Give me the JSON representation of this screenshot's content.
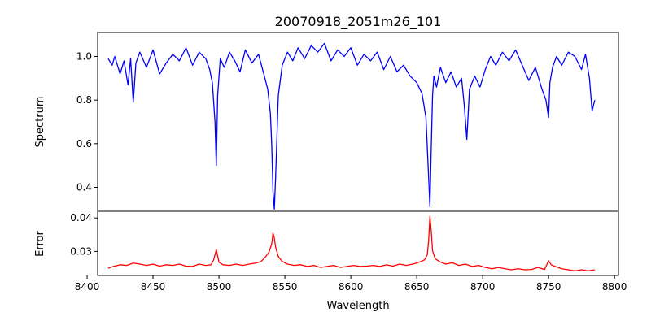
{
  "chart_data": {
    "type": "line",
    "title": "20070918_2051m26_101",
    "xlabel": "Wavelength",
    "x_range": [
      8400,
      8800
    ],
    "x_ticks": [
      8400,
      8450,
      8500,
      8550,
      8600,
      8650,
      8700,
      8750,
      8800
    ],
    "grid": false,
    "panels": [
      {
        "ylabel": "Spectrum",
        "ylim": [
          0.29,
          1.11
        ],
        "y_ticks": [
          0.4,
          0.6,
          0.8,
          1.0
        ],
        "color": "#0000ff",
        "x": [
          8416,
          8419,
          8421,
          8425,
          8428,
          8431,
          8433,
          8435,
          8437,
          8440,
          8445,
          8450,
          8455,
          8460,
          8465,
          8470,
          8475,
          8480,
          8485,
          8490,
          8493,
          8495,
          8497,
          8498,
          8499,
          8501,
          8504,
          8508,
          8512,
          8516,
          8520,
          8525,
          8530,
          8534,
          8537,
          8539,
          8540,
          8541,
          8542,
          8543,
          8545,
          8548,
          8552,
          8556,
          8560,
          8565,
          8570,
          8575,
          8580,
          8585,
          8590,
          8595,
          8600,
          8605,
          8610,
          8615,
          8620,
          8625,
          8630,
          8635,
          8640,
          8645,
          8650,
          8654,
          8657,
          8659,
          8660,
          8661,
          8662,
          8663,
          8665,
          8668,
          8672,
          8676,
          8680,
          8684,
          8686,
          8688,
          8690,
          8694,
          8698,
          8702,
          8706,
          8710,
          8715,
          8720,
          8725,
          8730,
          8735,
          8740,
          8745,
          8748,
          8750,
          8751,
          8753,
          8756,
          8760,
          8765,
          8770,
          8775,
          8778,
          8781,
          8783,
          8785
        ],
        "y": [
          0.99,
          0.96,
          1.0,
          0.92,
          0.98,
          0.87,
          0.99,
          0.79,
          0.97,
          1.02,
          0.95,
          1.03,
          0.92,
          0.97,
          1.01,
          0.98,
          1.04,
          0.96,
          1.02,
          0.99,
          0.94,
          0.88,
          0.7,
          0.5,
          0.82,
          0.99,
          0.95,
          1.02,
          0.98,
          0.93,
          1.03,
          0.97,
          1.01,
          0.92,
          0.85,
          0.74,
          0.6,
          0.38,
          0.3,
          0.45,
          0.82,
          0.96,
          1.02,
          0.98,
          1.04,
          0.99,
          1.05,
          1.02,
          1.06,
          0.98,
          1.03,
          1.0,
          1.04,
          0.96,
          1.01,
          0.98,
          1.02,
          0.94,
          1.0,
          0.93,
          0.96,
          0.91,
          0.88,
          0.83,
          0.72,
          0.45,
          0.31,
          0.58,
          0.82,
          0.91,
          0.86,
          0.95,
          0.88,
          0.93,
          0.86,
          0.9,
          0.78,
          0.62,
          0.85,
          0.91,
          0.86,
          0.94,
          1.0,
          0.96,
          1.02,
          0.98,
          1.03,
          0.96,
          0.89,
          0.95,
          0.85,
          0.8,
          0.72,
          0.88,
          0.95,
          1.0,
          0.96,
          1.02,
          1.0,
          0.94,
          1.01,
          0.9,
          0.75,
          0.8
        ]
      },
      {
        "ylabel": "Error",
        "ylim": [
          0.0228,
          0.042
        ],
        "y_ticks": [
          0.03,
          0.04
        ],
        "color": "#ff0000",
        "x": [
          8416,
          8420,
          8425,
          8430,
          8435,
          8440,
          8445,
          8450,
          8455,
          8460,
          8465,
          8470,
          8475,
          8480,
          8485,
          8490,
          8494,
          8496,
          8498,
          8500,
          8503,
          8508,
          8513,
          8518,
          8523,
          8528,
          8532,
          8535,
          8538,
          8540,
          8541,
          8542,
          8543,
          8545,
          8548,
          8552,
          8557,
          8562,
          8567,
          8572,
          8577,
          8582,
          8587,
          8592,
          8597,
          8602,
          8607,
          8612,
          8617,
          8622,
          8627,
          8632,
          8637,
          8642,
          8647,
          8652,
          8656,
          8658,
          8659,
          8660,
          8661,
          8662,
          8664,
          8668,
          8672,
          8677,
          8682,
          8687,
          8692,
          8697,
          8702,
          8707,
          8712,
          8717,
          8722,
          8727,
          8732,
          8737,
          8742,
          8747,
          8750,
          8752,
          8755,
          8760,
          8765,
          8770,
          8775,
          8780,
          8785
        ],
        "y": [
          0.025,
          0.0255,
          0.026,
          0.0258,
          0.0265,
          0.0262,
          0.0258,
          0.0262,
          0.0256,
          0.026,
          0.0258,
          0.0262,
          0.0256,
          0.0255,
          0.0262,
          0.0258,
          0.026,
          0.0275,
          0.0305,
          0.0268,
          0.026,
          0.0258,
          0.0262,
          0.0258,
          0.0262,
          0.0265,
          0.027,
          0.0282,
          0.0298,
          0.0322,
          0.0355,
          0.034,
          0.0312,
          0.0285,
          0.027,
          0.0262,
          0.0258,
          0.026,
          0.0255,
          0.0258,
          0.0252,
          0.0255,
          0.0258,
          0.0252,
          0.0255,
          0.0258,
          0.0255,
          0.0256,
          0.0258,
          0.0255,
          0.026,
          0.0256,
          0.0262,
          0.0258,
          0.0262,
          0.0268,
          0.0275,
          0.029,
          0.033,
          0.0405,
          0.0362,
          0.0302,
          0.0278,
          0.0268,
          0.0262,
          0.0266,
          0.0258,
          0.0262,
          0.0255,
          0.0258,
          0.0252,
          0.0248,
          0.0252,
          0.0248,
          0.0245,
          0.0248,
          0.0245,
          0.0246,
          0.0252,
          0.0246,
          0.0272,
          0.026,
          0.0255,
          0.0248,
          0.0245,
          0.0242,
          0.0245,
          0.0242,
          0.0245
        ]
      }
    ]
  }
}
